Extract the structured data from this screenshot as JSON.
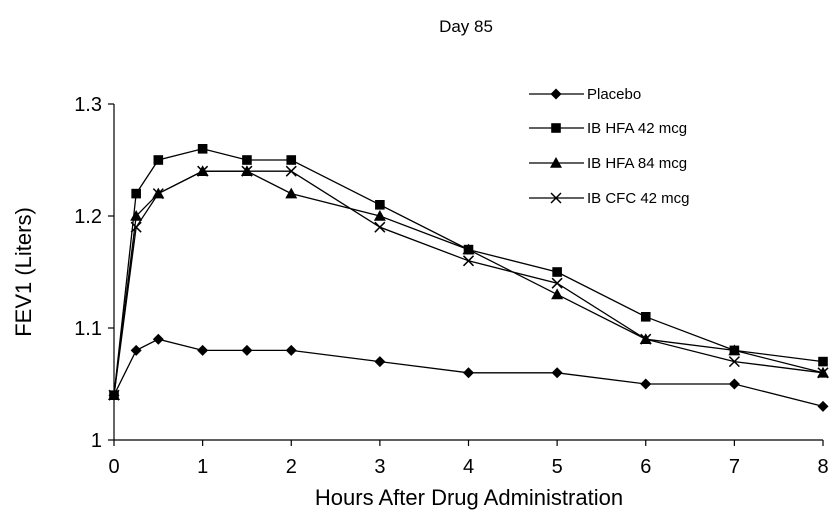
{
  "chart_data": {
    "type": "line",
    "title": "Day 85",
    "xlabel": "Hours After Drug Administration",
    "ylabel": "FEV1 (Liters)",
    "xlim": [
      0,
      8
    ],
    "ylim": [
      1,
      1.3
    ],
    "xticks": [
      "0",
      "1",
      "2",
      "3",
      "4",
      "5",
      "6",
      "7",
      "8"
    ],
    "yticks": [
      "1",
      "1.1",
      "1.2",
      "1.3"
    ],
    "grid": false,
    "legend_position": "top-right",
    "x": [
      0,
      0.25,
      0.5,
      1,
      1.5,
      2,
      3,
      4,
      5,
      6,
      7,
      8
    ],
    "series": [
      {
        "name": "Placebo",
        "marker": "diamond",
        "values": [
          1.04,
          1.08,
          1.09,
          1.08,
          1.08,
          1.08,
          1.07,
          1.06,
          1.06,
          1.05,
          1.05,
          1.03
        ]
      },
      {
        "name": "IB HFA 42 mcg",
        "marker": "square",
        "values": [
          1.04,
          1.22,
          1.25,
          1.26,
          1.25,
          1.25,
          1.21,
          1.17,
          1.15,
          1.11,
          1.08,
          1.07
        ]
      },
      {
        "name": "IB HFA 84 mcg",
        "marker": "triangle",
        "values": [
          1.04,
          1.2,
          1.22,
          1.24,
          1.24,
          1.22,
          1.2,
          1.17,
          1.13,
          1.09,
          1.08,
          1.06
        ]
      },
      {
        "name": "IB CFC 42 mcg",
        "marker": "x",
        "values": [
          1.04,
          1.19,
          1.22,
          1.24,
          1.24,
          1.24,
          1.19,
          1.16,
          1.14,
          1.09,
          1.07,
          1.06
        ]
      }
    ],
    "line_color": "#000000"
  }
}
